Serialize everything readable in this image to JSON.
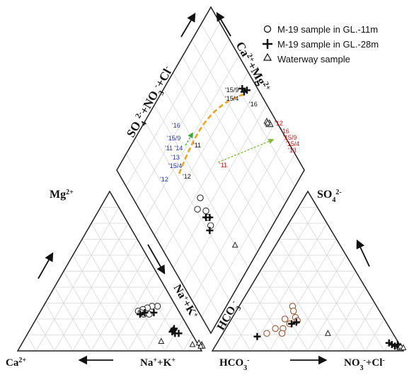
{
  "chart_data": {
    "type": "scatter",
    "subtype": "piper-diagram",
    "legend": {
      "placement": "top-right",
      "entries": [
        {
          "symbol": "circle",
          "label": "M-19 sample in GL.-11m"
        },
        {
          "symbol": "plus",
          "label": "M-19 sample in GL.-28m"
        },
        {
          "symbol": "triangle",
          "label": "Waterway sample"
        }
      ]
    },
    "axis_labels": {
      "cation_top": "Mg2+",
      "cation_left": "Ca2+",
      "cation_right": "Na++K+",
      "anion_top": "SO42-",
      "anion_left": "HCO3-",
      "anion_right": "NO3-+Cl-",
      "diamond_left": "SO42-+NO3-+Cl-",
      "diamond_right": "Ca2++Mg2+",
      "diamond_center_left": "Na++K+",
      "diamond_center_right": "HCO3-"
    },
    "year_labels": {
      "gl11": [
        "'16",
        "'15/9",
        "'13",
        "'15/4",
        "'12"
      ],
      "gl28": [
        "'11 '14",
        "'11",
        "'12",
        "'15/9",
        "'15/4",
        "'16"
      ],
      "waterway": [
        "'12",
        "'16",
        "'15/9",
        "'15/4",
        "'13",
        "'11"
      ]
    },
    "colors": {
      "gl11_label": "#2233bb",
      "waterway_label": "#dd1111",
      "trend_main": "#f0a020",
      "trend_green": "#33aa33",
      "trend_waterway": "#88bb33",
      "grid": "#d9d9d9"
    },
    "cations": {
      "gl11": [
        [
          0.62,
          0.28
        ],
        [
          0.59,
          0.28
        ],
        [
          0.57,
          0.27
        ],
        [
          0.55,
          0.26
        ],
        [
          0.53,
          0.25
        ],
        [
          0.57,
          0.23
        ],
        [
          0.55,
          0.24
        ],
        [
          0.6,
          0.23
        ]
      ],
      "gl28": [
        [
          0.57,
          0.24
        ],
        [
          0.55,
          0.23
        ],
        [
          0.62,
          0.24
        ],
        [
          0.78,
          0.13
        ],
        [
          0.78,
          0.12
        ],
        [
          0.82,
          0.11
        ],
        [
          0.78,
          0.14
        ],
        [
          0.8,
          0.11
        ]
      ],
      "waterway": [
        [
          0.75,
          0.06
        ],
        [
          0.93,
          0.04
        ],
        [
          0.96,
          0.05
        ],
        [
          0.98,
          0.04
        ],
        [
          0.99,
          0.03
        ],
        [
          0.98,
          0.03
        ]
      ]
    },
    "anions": {
      "gl11": [
        [
          0.28,
          0.28
        ],
        [
          0.3,
          0.25
        ],
        [
          0.33,
          0.21
        ],
        [
          0.3,
          0.14
        ],
        [
          0.26,
          0.14
        ],
        [
          0.23,
          0.11
        ],
        [
          0.31,
          0.11
        ],
        [
          0.35,
          0.19
        ],
        [
          0.28,
          0.2
        ],
        [
          0.32,
          0.17
        ]
      ],
      "gl28": [
        [
          0.33,
          0.17
        ],
        [
          0.35,
          0.18
        ],
        [
          0.19,
          0.09
        ],
        [
          0.9,
          0.05
        ],
        [
          0.92,
          0.04
        ],
        [
          0.94,
          0.03
        ],
        [
          0.95,
          0.04
        ]
      ],
      "waterway": [
        [
          0.55,
          0.11
        ],
        [
          0.96,
          0.03
        ],
        [
          0.97,
          0.02
        ],
        [
          0.98,
          0.02
        ],
        [
          0.97,
          0.03
        ],
        [
          0.99,
          0.02
        ]
      ]
    },
    "diamond": {
      "gl11": [
        [
          0.31,
          0.45
        ],
        [
          0.36,
          0.47
        ],
        [
          0.35,
          0.4
        ],
        [
          0.34,
          0.37
        ],
        [
          0.33,
          0.33
        ]
      ],
      "gl28": [
        [
          0.33,
          0.38
        ],
        [
          0.35,
          0.36
        ],
        [
          0.31,
          0.32
        ],
        [
          0.92,
          0.58
        ],
        [
          0.92,
          0.56
        ],
        [
          0.94,
          0.55
        ]
      ],
      "waterway": [
        [
          0.95,
          0.35
        ],
        [
          0.95,
          0.33
        ],
        [
          0.96,
          0.33
        ],
        [
          0.96,
          0.32
        ],
        [
          0.95,
          0.34
        ],
        [
          0.4,
          0.14
        ]
      ]
    }
  }
}
